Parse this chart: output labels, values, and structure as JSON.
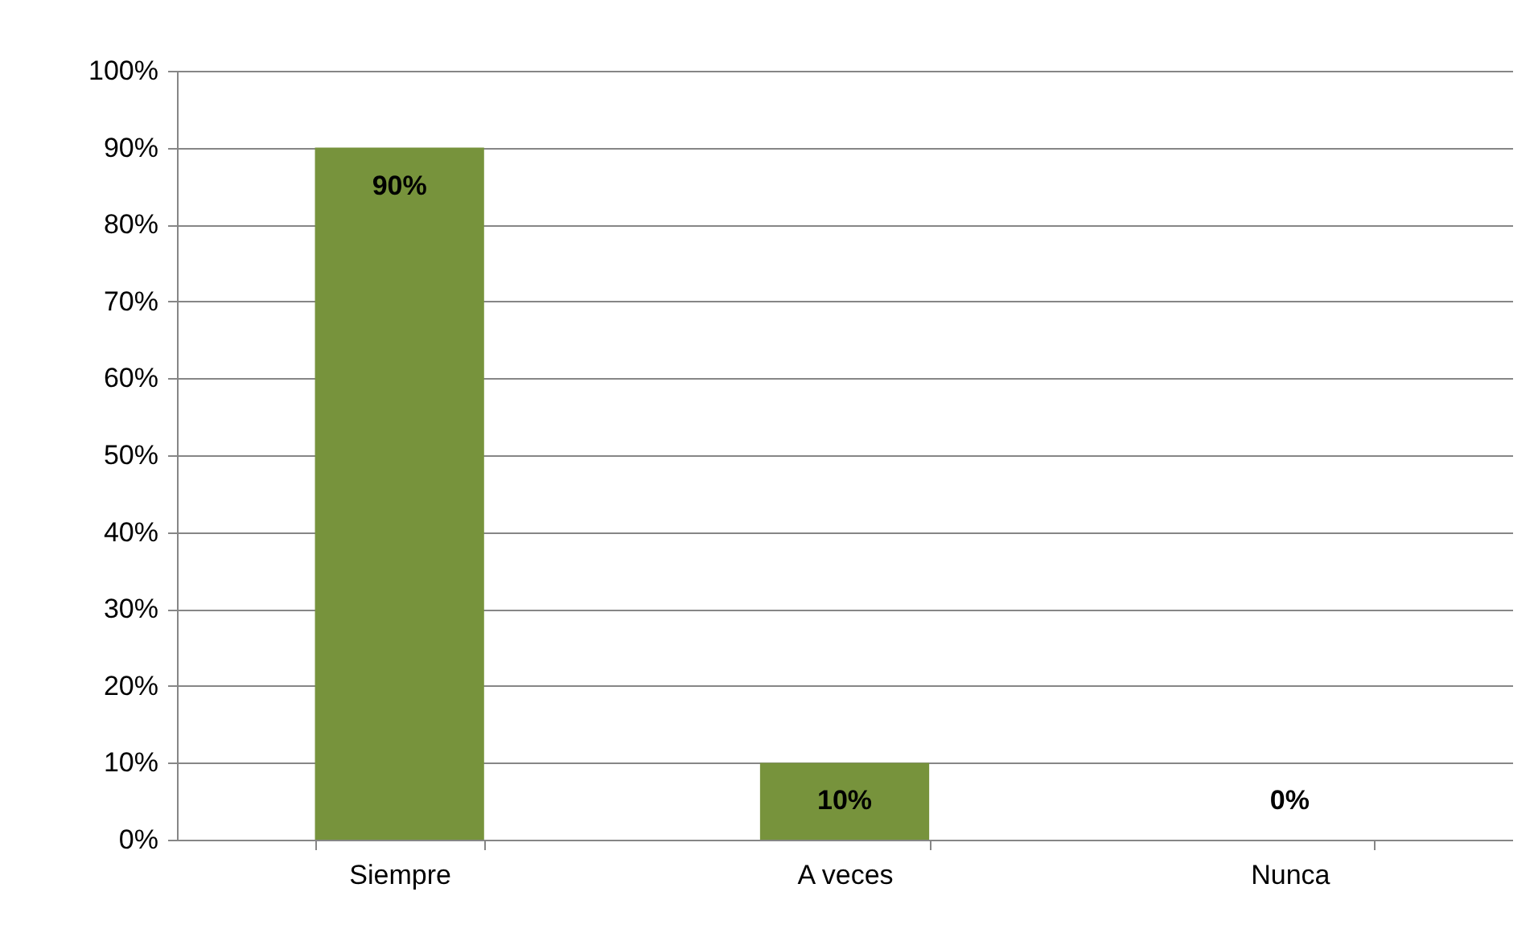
{
  "chart_data": {
    "type": "bar",
    "categories": [
      "Siempre",
      "A veces",
      "Nunca"
    ],
    "values": [
      90,
      10,
      0
    ],
    "color": "#77933c",
    "value_labels": [
      "90%",
      "10%",
      "0%"
    ],
    "ylim": [
      0,
      100
    ],
    "yticks": [
      {
        "value": 0,
        "label": "0%"
      },
      {
        "value": 10,
        "label": "10%"
      },
      {
        "value": 20,
        "label": "20%"
      },
      {
        "value": 30,
        "label": "30%"
      },
      {
        "value": 40,
        "label": "40%"
      },
      {
        "value": 50,
        "label": "50%"
      },
      {
        "value": 60,
        "label": "60%"
      },
      {
        "value": 70,
        "label": "70%"
      },
      {
        "value": 80,
        "label": "80%"
      },
      {
        "value": 90,
        "label": "90%"
      },
      {
        "value": 100,
        "label": "100%"
      }
    ],
    "grid": "y"
  }
}
